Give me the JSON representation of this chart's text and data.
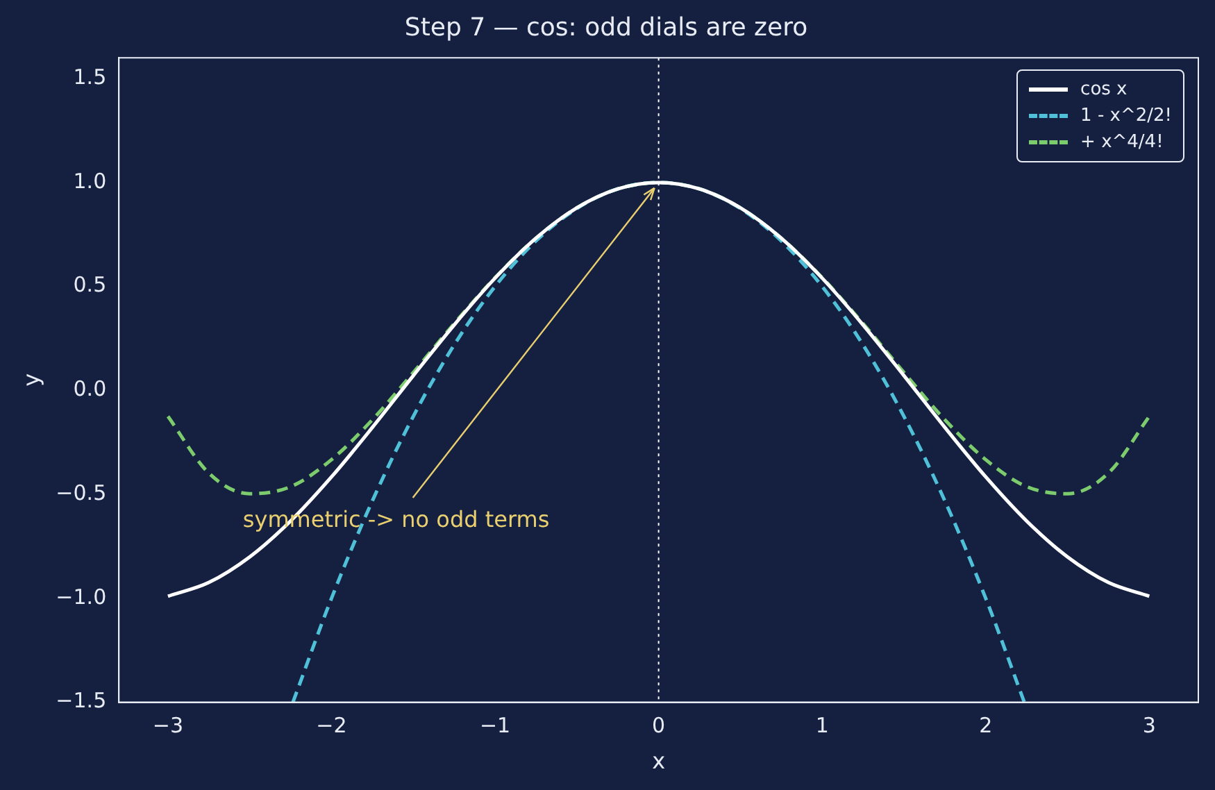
{
  "chart_data": {
    "type": "line",
    "title": "Step 7 — cos: odd dials are zero",
    "xlabel": "x",
    "ylabel": "y",
    "x": [
      -3,
      -2.75,
      -2.5,
      -2.25,
      -2,
      -1.75,
      -1.5,
      -1.25,
      -1,
      -0.75,
      -0.5,
      -0.25,
      0,
      0.25,
      0.5,
      0.75,
      1,
      1.25,
      1.5,
      1.75,
      2,
      2.25,
      2.5,
      2.75,
      3
    ],
    "series": [
      {
        "name": "cos x",
        "color": "#ffffff",
        "line_style": "solid",
        "values": [
          -0.99,
          -0.924,
          -0.801,
          -0.628,
          -0.416,
          -0.178,
          0.071,
          0.315,
          0.54,
          0.732,
          0.878,
          0.969,
          1.0,
          0.969,
          0.878,
          0.732,
          0.54,
          0.315,
          0.071,
          -0.178,
          -0.416,
          -0.628,
          -0.801,
          -0.924,
          -0.99
        ]
      },
      {
        "name": "1 - x^2/2!",
        "color": "#4fc0d8",
        "line_style": "dashed",
        "x": [
          -2.236,
          -2,
          -1.75,
          -1.5,
          -1.25,
          -1,
          -0.75,
          -0.5,
          -0.25,
          0,
          0.25,
          0.5,
          0.75,
          1,
          1.25,
          1.5,
          1.75,
          2,
          2.236
        ],
        "values": [
          -1.5,
          -1.0,
          -0.531,
          -0.125,
          0.219,
          0.5,
          0.719,
          0.875,
          0.969,
          1.0,
          0.969,
          0.875,
          0.719,
          0.5,
          0.219,
          -0.125,
          -0.531,
          -1.0,
          -1.5
        ]
      },
      {
        "name": "+ x^4/4!",
        "color": "#7ccb6c",
        "line_style": "dashed",
        "values": [
          -0.125,
          -0.398,
          -0.497,
          -0.463,
          -0.333,
          -0.141,
          0.086,
          0.321,
          0.542,
          0.732,
          0.878,
          0.969,
          1.0,
          0.969,
          0.878,
          0.732,
          0.542,
          0.321,
          0.086,
          -0.141,
          -0.333,
          -0.463,
          -0.497,
          -0.398,
          -0.125
        ]
      }
    ],
    "xlim": [
      -3.3,
      3.3
    ],
    "xticks": [
      {
        "value": -3,
        "label": "−3"
      },
      {
        "value": -2,
        "label": "−2"
      },
      {
        "value": -1,
        "label": "−1"
      },
      0,
      1,
      2,
      3
    ],
    "ylim": [
      -1.5,
      1.6
    ],
    "yticks": [
      {
        "value": -1.5,
        "label": "−1.5"
      },
      {
        "value": -1,
        "label": "−1.0"
      },
      {
        "value": -0.5,
        "label": "−0.5"
      },
      {
        "value": 0,
        "label": "0.0"
      },
      0.5,
      {
        "value": 1,
        "label": "1.0"
      },
      1.5
    ],
    "ref_lines": [
      {
        "axis": "x",
        "value": 0,
        "color": "#ffffff",
        "line_style": "dotted"
      }
    ],
    "annotations": [
      {
        "text": "symmetric -> no odd terms",
        "x": 0,
        "y": 1
      }
    ],
    "grid": false,
    "legend": "top right",
    "marker": "none"
  }
}
